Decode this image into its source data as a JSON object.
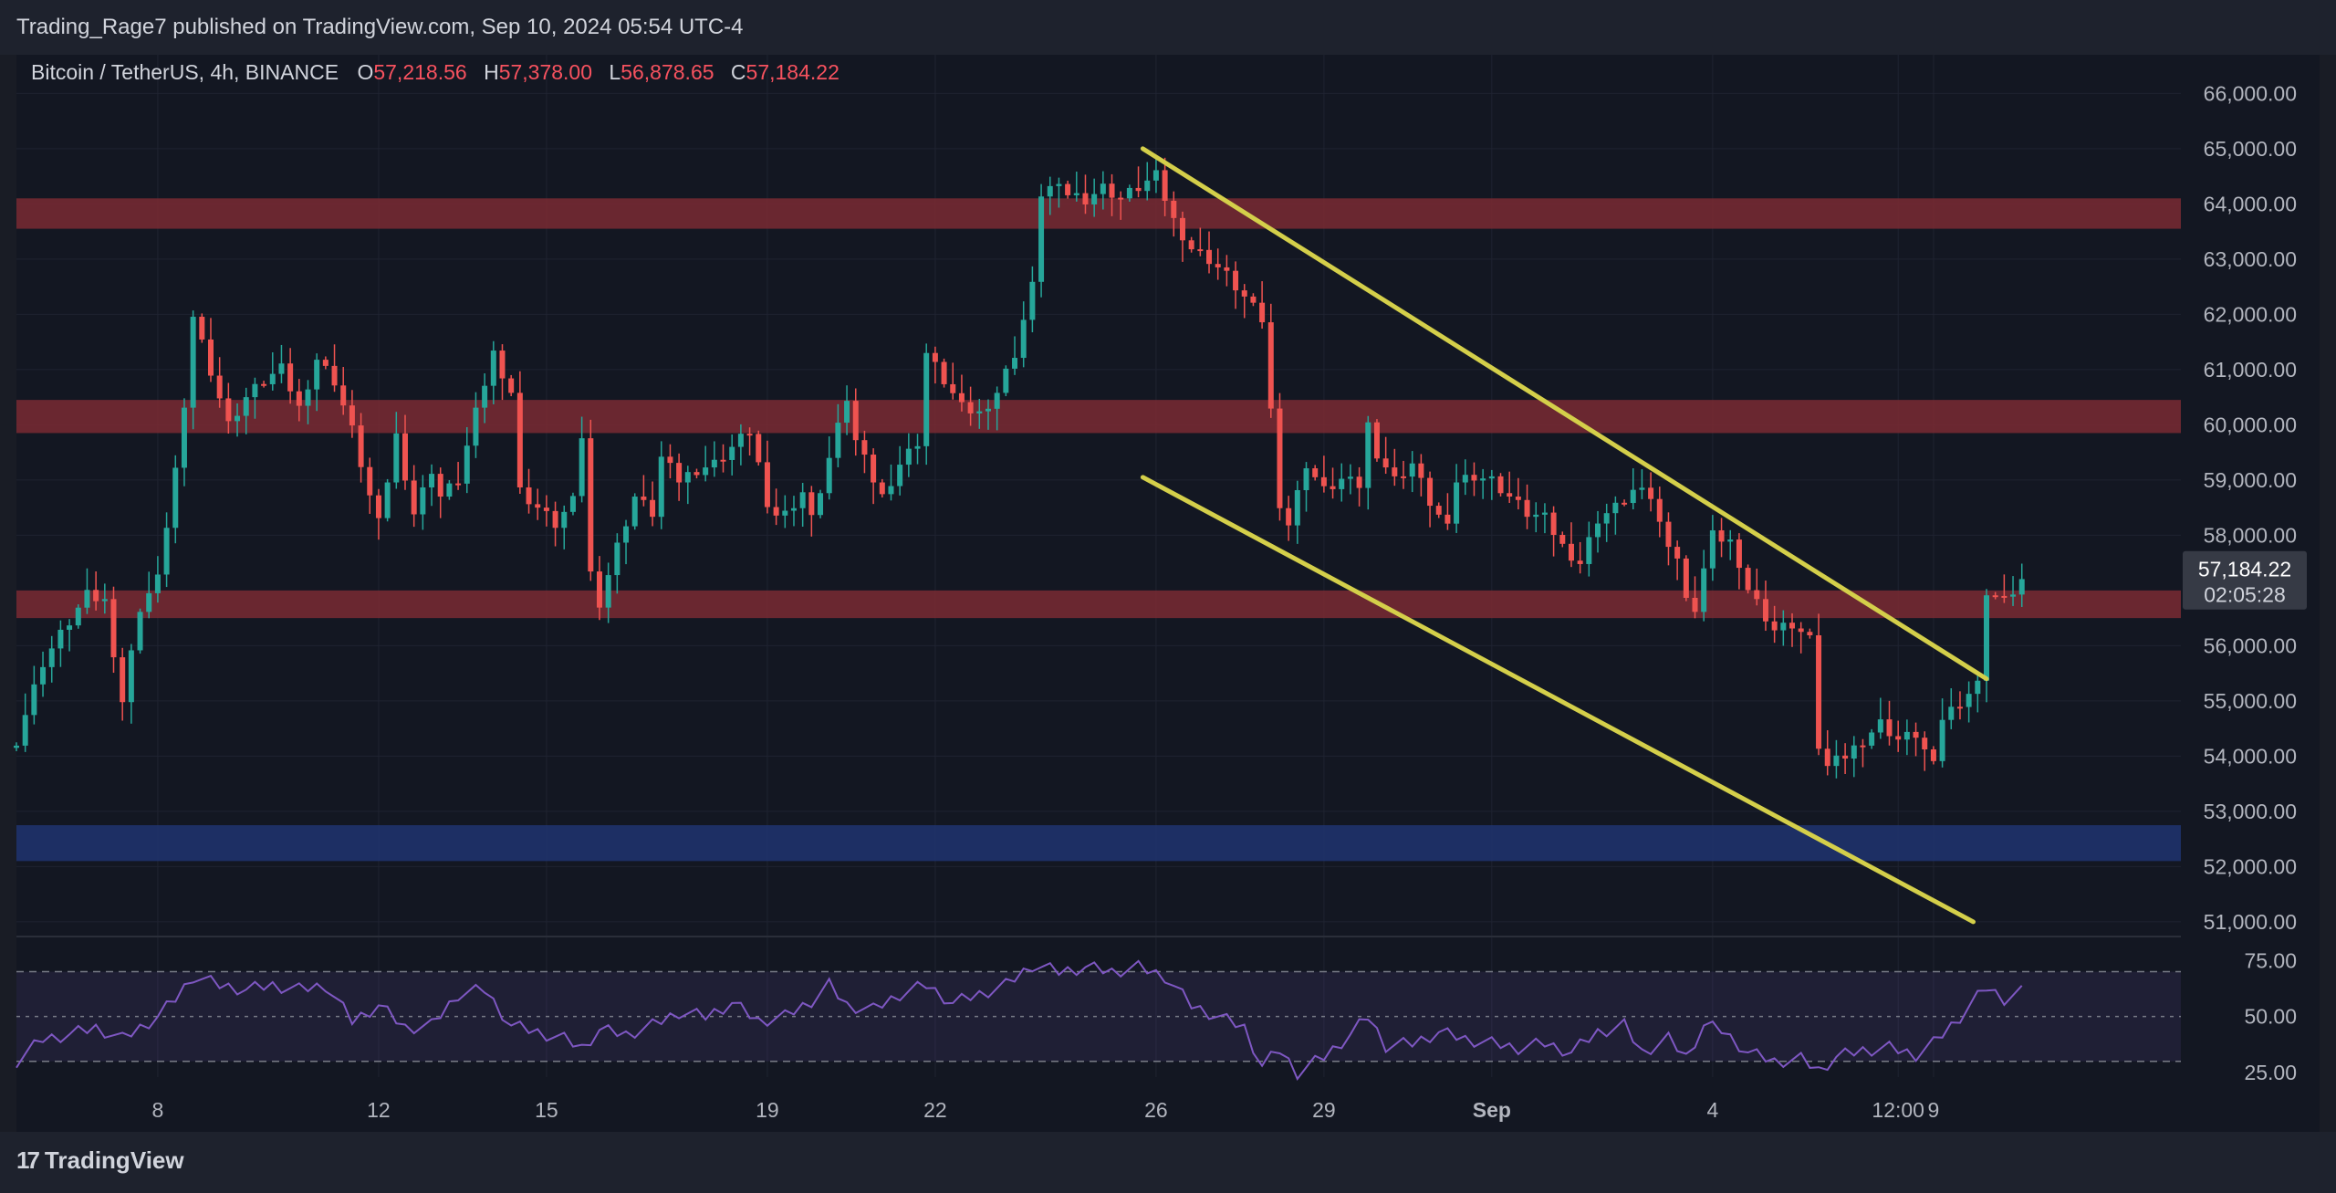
{
  "header": {
    "published": "Trading_Rage7 published on TradingView.com, Sep 10, 2024 05:54 UTC-4",
    "symbol": "Bitcoin / TetherUS, 4h, BINANCE",
    "ohlc": [
      {
        "label": "O",
        "value": "57,218.56"
      },
      {
        "label": "H",
        "value": "57,378.00"
      },
      {
        "label": "L",
        "value": "56,878.65"
      },
      {
        "label": "C",
        "value": "57,184.22"
      }
    ]
  },
  "price_tag": {
    "price": "57,184.22",
    "countdown": "02:05:28"
  },
  "brand": {
    "logo_text": "TradingView",
    "logo_icon": "tradingview-logo-icon"
  },
  "colors": {
    "up": "#26a69a",
    "down": "#ef5350",
    "resistance": "#7a2a33",
    "support": "#203470",
    "channel": "#d4cf4a",
    "rsi": "#7e57c2"
  },
  "chart_data": {
    "type": "candlestick",
    "timeframe": "4h",
    "y_ticks": [
      {
        "v": 66000,
        "t": "66,000.00"
      },
      {
        "v": 65000,
        "t": "65,000.00"
      },
      {
        "v": 64000,
        "t": "64,000.00"
      },
      {
        "v": 63000,
        "t": "63,000.00"
      },
      {
        "v": 62000,
        "t": "62,000.00"
      },
      {
        "v": 61000,
        "t": "61,000.00"
      },
      {
        "v": 60000,
        "t": "60,000.00"
      },
      {
        "v": 59000,
        "t": "59,000.00"
      },
      {
        "v": 58000,
        "t": "58,000.00"
      },
      {
        "v": 56000,
        "t": "56,000.00"
      },
      {
        "v": 55000,
        "t": "55,000.00"
      },
      {
        "v": 54000,
        "t": "54,000.00"
      },
      {
        "v": 53000,
        "t": "53,000.00"
      },
      {
        "v": 52000,
        "t": "52,000.00"
      },
      {
        "v": 51000,
        "t": "51,000.00"
      }
    ],
    "ylim": [
      50800,
      66700
    ],
    "x_range": [
      0,
      245
    ],
    "x_ticks": [
      {
        "x": 16,
        "t": "8"
      },
      {
        "x": 41,
        "t": "12"
      },
      {
        "x": 60,
        "t": "15"
      },
      {
        "x": 85,
        "t": "19"
      },
      {
        "x": 104,
        "t": "22"
      },
      {
        "x": 129,
        "t": "26"
      },
      {
        "x": 148,
        "t": "29"
      },
      {
        "x": 167,
        "t": "Sep"
      },
      {
        "x": 192,
        "t": "4"
      },
      {
        "x": 213,
        "t": "12:00"
      },
      {
        "x": 217,
        "t": "9"
      }
    ],
    "zones": [
      {
        "kind": "resistance",
        "from": 63550,
        "to": 64100
      },
      {
        "kind": "resistance",
        "from": 59850,
        "to": 60450
      },
      {
        "kind": "resistance",
        "from": 56500,
        "to": 57000
      },
      {
        "kind": "support",
        "from": 52100,
        "to": 52750
      }
    ],
    "trendlines": [
      {
        "x1": 127.5,
        "y1": 65000,
        "x2": 223,
        "y2": 55400
      },
      {
        "x1": 127.5,
        "y1": 59050,
        "x2": 221.5,
        "y2": 51000
      }
    ],
    "anchors": [
      [
        0,
        54300
      ],
      [
        3,
        55700
      ],
      [
        5,
        56200
      ],
      [
        8,
        56900
      ],
      [
        10,
        56800
      ],
      [
        12,
        55000
      ],
      [
        14,
        56700
      ],
      [
        16,
        57200
      ],
      [
        17,
        58200
      ],
      [
        19,
        60200
      ],
      [
        20,
        62000
      ],
      [
        22,
        61000
      ],
      [
        24,
        60000
      ],
      [
        26,
        60500
      ],
      [
        28,
        60800
      ],
      [
        30,
        61000
      ],
      [
        32,
        60300
      ],
      [
        34,
        61200
      ],
      [
        36,
        60800
      ],
      [
        38,
        59900
      ],
      [
        40,
        58700
      ],
      [
        41,
        58200
      ],
      [
        43,
        59800
      ],
      [
        45,
        58400
      ],
      [
        47,
        59200
      ],
      [
        48,
        58700
      ],
      [
        50,
        59000
      ],
      [
        52,
        60200
      ],
      [
        54,
        61300
      ],
      [
        56,
        60600
      ],
      [
        57,
        58800
      ],
      [
        59,
        58500
      ],
      [
        61,
        58200
      ],
      [
        63,
        58600
      ],
      [
        64,
        59800
      ],
      [
        65,
        57300
      ],
      [
        66,
        56800
      ],
      [
        68,
        57800
      ],
      [
        70,
        58700
      ],
      [
        72,
        58400
      ],
      [
        73,
        59400
      ],
      [
        75,
        59000
      ],
      [
        77,
        59200
      ],
      [
        79,
        59300
      ],
      [
        81,
        59600
      ],
      [
        83,
        59900
      ],
      [
        84,
        59300
      ],
      [
        85,
        58400
      ],
      [
        87,
        58400
      ],
      [
        89,
        58800
      ],
      [
        90,
        58300
      ],
      [
        92,
        59400
      ],
      [
        94,
        60500
      ],
      [
        95,
        59700
      ],
      [
        97,
        59000
      ],
      [
        98,
        58700
      ],
      [
        100,
        59300
      ],
      [
        102,
        59700
      ],
      [
        103,
        61300
      ],
      [
        105,
        60800
      ],
      [
        107,
        60300
      ],
      [
        109,
        60200
      ],
      [
        111,
        60600
      ],
      [
        113,
        61300
      ],
      [
        115,
        62500
      ],
      [
        116,
        64200
      ],
      [
        117,
        64300
      ],
      [
        119,
        64200
      ],
      [
        121,
        64100
      ],
      [
        123,
        64300
      ],
      [
        125,
        64100
      ],
      [
        127,
        64300
      ],
      [
        129,
        64500
      ],
      [
        131,
        63700
      ],
      [
        133,
        63200
      ],
      [
        135,
        63000
      ],
      [
        137,
        62700
      ],
      [
        139,
        62300
      ],
      [
        141,
        61900
      ],
      [
        143,
        58600
      ],
      [
        144,
        58200
      ],
      [
        146,
        59300
      ],
      [
        148,
        58800
      ],
      [
        150,
        59000
      ],
      [
        152,
        58900
      ],
      [
        153,
        60000
      ],
      [
        154,
        59500
      ],
      [
        156,
        59000
      ],
      [
        158,
        59300
      ],
      [
        160,
        58600
      ],
      [
        162,
        58100
      ],
      [
        163,
        59000
      ],
      [
        165,
        59100
      ],
      [
        167,
        59000
      ],
      [
        169,
        58700
      ],
      [
        171,
        58400
      ],
      [
        173,
        58300
      ],
      [
        175,
        57800
      ],
      [
        177,
        57500
      ],
      [
        179,
        58300
      ],
      [
        181,
        58500
      ],
      [
        183,
        58800
      ],
      [
        185,
        58700
      ],
      [
        186,
        58200
      ],
      [
        188,
        57600
      ],
      [
        189,
        56800
      ],
      [
        190,
        56700
      ],
      [
        191,
        57400
      ],
      [
        192,
        58000
      ],
      [
        194,
        57900
      ],
      [
        195,
        57300
      ],
      [
        197,
        56800
      ],
      [
        199,
        56300
      ],
      [
        201,
        56400
      ],
      [
        203,
        56100
      ],
      [
        204,
        54200
      ],
      [
        205,
        53800
      ],
      [
        207,
        54000
      ],
      [
        209,
        54300
      ],
      [
        211,
        54600
      ],
      [
        213,
        54300
      ],
      [
        215,
        54400
      ],
      [
        217,
        53800
      ],
      [
        218,
        54700
      ],
      [
        220,
        55000
      ],
      [
        222,
        55300
      ],
      [
        223,
        57000
      ],
      [
        225,
        56800
      ],
      [
        227,
        57184
      ]
    ],
    "rsi": {
      "ticks": [
        {
          "v": 75,
          "t": "75.00"
        },
        {
          "v": 50,
          "t": "50.00"
        },
        {
          "v": 25,
          "t": "25.00"
        }
      ],
      "range": [
        23,
        80
      ],
      "levels": [
        70,
        50,
        30
      ],
      "band": [
        30,
        70
      ],
      "anchors": [
        [
          0,
          30
        ],
        [
          3,
          40
        ],
        [
          6,
          42
        ],
        [
          9,
          45
        ],
        [
          12,
          40
        ],
        [
          14,
          45
        ],
        [
          16,
          50
        ],
        [
          18,
          58
        ],
        [
          20,
          68
        ],
        [
          23,
          64
        ],
        [
          26,
          62
        ],
        [
          29,
          64
        ],
        [
          32,
          62
        ],
        [
          35,
          64
        ],
        [
          38,
          48
        ],
        [
          41,
          55
        ],
        [
          44,
          45
        ],
        [
          47,
          46
        ],
        [
          50,
          60
        ],
        [
          53,
          62
        ],
        [
          56,
          46
        ],
        [
          59,
          43
        ],
        [
          62,
          40
        ],
        [
          64,
          36
        ],
        [
          66,
          44
        ],
        [
          69,
          42
        ],
        [
          72,
          46
        ],
        [
          75,
          52
        ],
        [
          78,
          50
        ],
        [
          81,
          56
        ],
        [
          84,
          48
        ],
        [
          87,
          50
        ],
        [
          90,
          57
        ],
        [
          92,
          64
        ],
        [
          94,
          55
        ],
        [
          97,
          53
        ],
        [
          100,
          60
        ],
        [
          103,
          64
        ],
        [
          106,
          56
        ],
        [
          109,
          60
        ],
        [
          112,
          64
        ],
        [
          115,
          73
        ],
        [
          118,
          70
        ],
        [
          121,
          72
        ],
        [
          124,
          70
        ],
        [
          127,
          72
        ],
        [
          130,
          68
        ],
        [
          133,
          55
        ],
        [
          136,
          50
        ],
        [
          139,
          45
        ],
        [
          141,
          28
        ],
        [
          143,
          35
        ],
        [
          145,
          25
        ],
        [
          148,
          32
        ],
        [
          151,
          42
        ],
        [
          153,
          50
        ],
        [
          155,
          37
        ],
        [
          158,
          38
        ],
        [
          161,
          43
        ],
        [
          164,
          40
        ],
        [
          167,
          38
        ],
        [
          170,
          36
        ],
        [
          173,
          38
        ],
        [
          176,
          34
        ],
        [
          179,
          43
        ],
        [
          182,
          46
        ],
        [
          184,
          34
        ],
        [
          187,
          40
        ],
        [
          189,
          32
        ],
        [
          191,
          46
        ],
        [
          193,
          44
        ],
        [
          196,
          34
        ],
        [
          199,
          30
        ],
        [
          202,
          31
        ],
        [
          204,
          26
        ],
        [
          206,
          32
        ],
        [
          209,
          35
        ],
        [
          212,
          36
        ],
        [
          215,
          33
        ],
        [
          217,
          38
        ],
        [
          220,
          50
        ],
        [
          223,
          63
        ],
        [
          225,
          58
        ],
        [
          227,
          61
        ]
      ]
    }
  }
}
